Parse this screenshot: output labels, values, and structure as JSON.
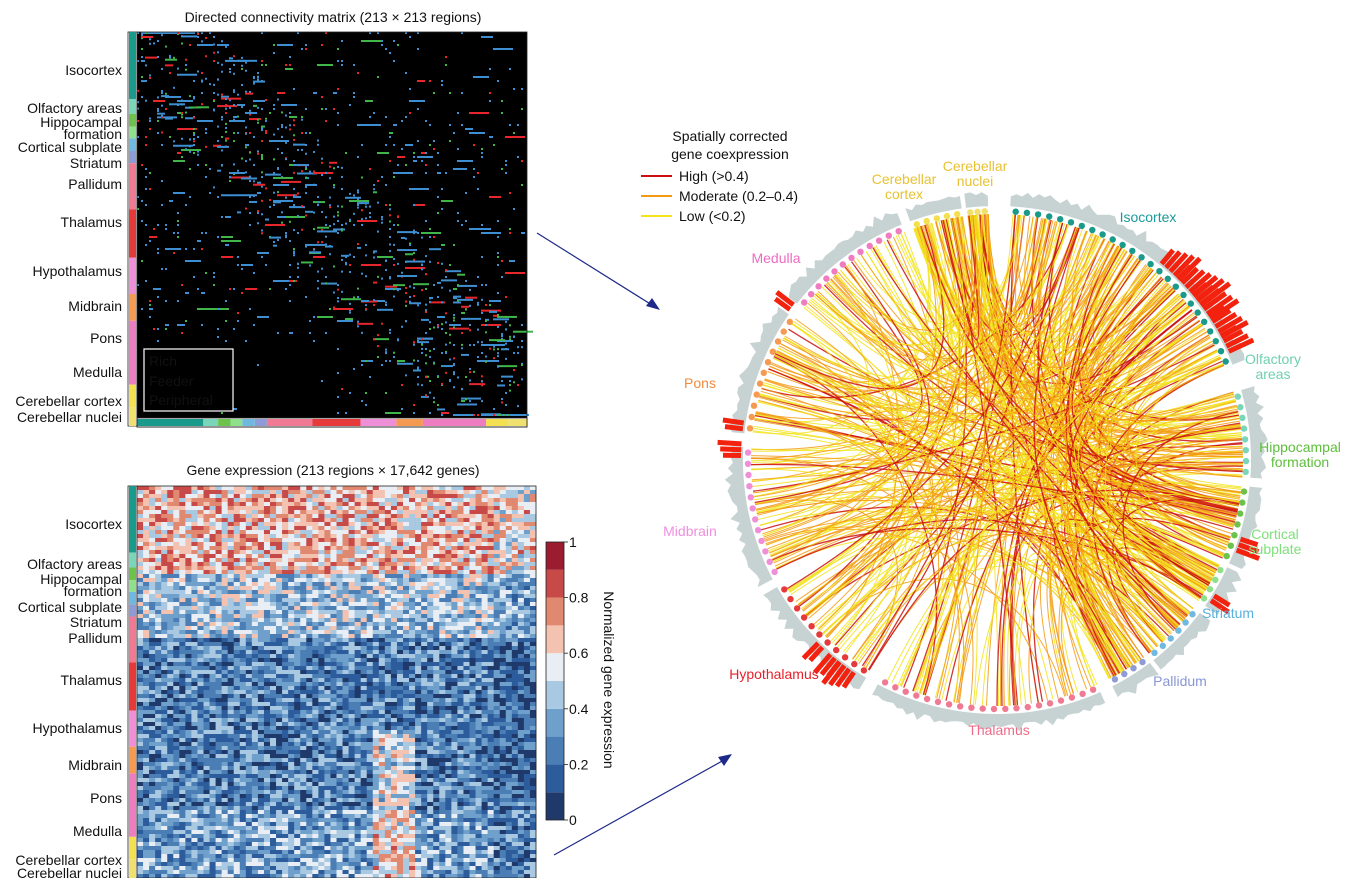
{
  "connectivity_panel": {
    "title": "Directed connectivity matrix (213 × 213 regions)",
    "legend": [
      {
        "label": "Rich",
        "color": "#e8262b"
      },
      {
        "label": "Feeder",
        "color": "#3fb54a"
      },
      {
        "label": "Peripheral",
        "color": "#3d8fd1"
      }
    ]
  },
  "expression_panel": {
    "title": "Gene expression (213 regions × 17,642 genes)",
    "colorbar": {
      "label": "Normalized gene expression",
      "ticks": [
        "0",
        "0.2",
        "0.4",
        "0.6",
        "0.8",
        "1"
      ]
    }
  },
  "regions": [
    {
      "name": "Isocortex",
      "color": "#1a9a8a"
    },
    {
      "name": "Olfactory areas",
      "color": "#7ad6b8"
    },
    {
      "name": "Hippocampal formation",
      "color": "#6cc24a"
    },
    {
      "name": "Cortical subplate",
      "color": "#8ee08a"
    },
    {
      "name": "Striatum",
      "color": "#6fb8e0"
    },
    {
      "name": "Pallidum",
      "color": "#8f9bd6"
    },
    {
      "name": "Thalamus",
      "color": "#f07a94"
    },
    {
      "name": "Hypothalamus",
      "color": "#e63a3a"
    },
    {
      "name": "Midbrain",
      "color": "#ef8fd8"
    },
    {
      "name": "Pons",
      "color": "#f59a50"
    },
    {
      "name": "Medulla",
      "color": "#ee7cc0"
    },
    {
      "name": "Cerebellar cortex",
      "color": "#f2e050"
    },
    {
      "name": "Cerebellar nuclei",
      "color": "#efe070"
    }
  ],
  "chord_panel": {
    "legend_title": "Spatially corrected gene coexpression",
    "legend_title_lines": [
      "Spatially corrected",
      "gene coexpression"
    ],
    "legend": [
      {
        "label": "High (>0.4)",
        "color": "#cc1010"
      },
      {
        "label": "Moderate (0.2–0.4)",
        "color": "#f39a12"
      },
      {
        "label": "Low (<0.2)",
        "color": "#f2e31a"
      }
    ],
    "labels": [
      {
        "text": "Cerebellar cortex",
        "lines": [
          "Cerebellar",
          "cortex"
        ],
        "color": "#e8c232"
      },
      {
        "text": "Cerebellar nuclei",
        "lines": [
          "Cerebellar",
          "nuclei"
        ],
        "color": "#e8c232"
      },
      {
        "text": "Isocortex",
        "lines": [
          "Isocortex"
        ],
        "color": "#1a9a9a"
      },
      {
        "text": "Medulla",
        "lines": [
          "Medulla"
        ],
        "color": "#ee6cc0"
      },
      {
        "text": "Olfactory areas",
        "lines": [
          "Olfactory",
          "areas"
        ],
        "color": "#6fd0b0"
      },
      {
        "text": "Pons",
        "lines": [
          "Pons"
        ],
        "color": "#f08a40"
      },
      {
        "text": "Hippocampal formation",
        "lines": [
          "Hippocampal",
          "formation"
        ],
        "color": "#5cbf3a"
      },
      {
        "text": "Midbrain",
        "lines": [
          "Midbrain"
        ],
        "color": "#ee8fe0"
      },
      {
        "text": "Cortical subplate",
        "lines": [
          "Cortical",
          "subplate"
        ],
        "color": "#7ee07a"
      },
      {
        "text": "Striatum",
        "lines": [
          "Striatum"
        ],
        "color": "#5ab0dc"
      },
      {
        "text": "Hypothalamus",
        "lines": [
          "Hypothalamus"
        ],
        "color": "#e8202a"
      },
      {
        "text": "Pallidum",
        "lines": [
          "Pallidum"
        ],
        "color": "#8a96d4"
      },
      {
        "text": "Thalamus",
        "lines": [
          "Thalamus"
        ],
        "color": "#ee6c8a"
      }
    ]
  }
}
